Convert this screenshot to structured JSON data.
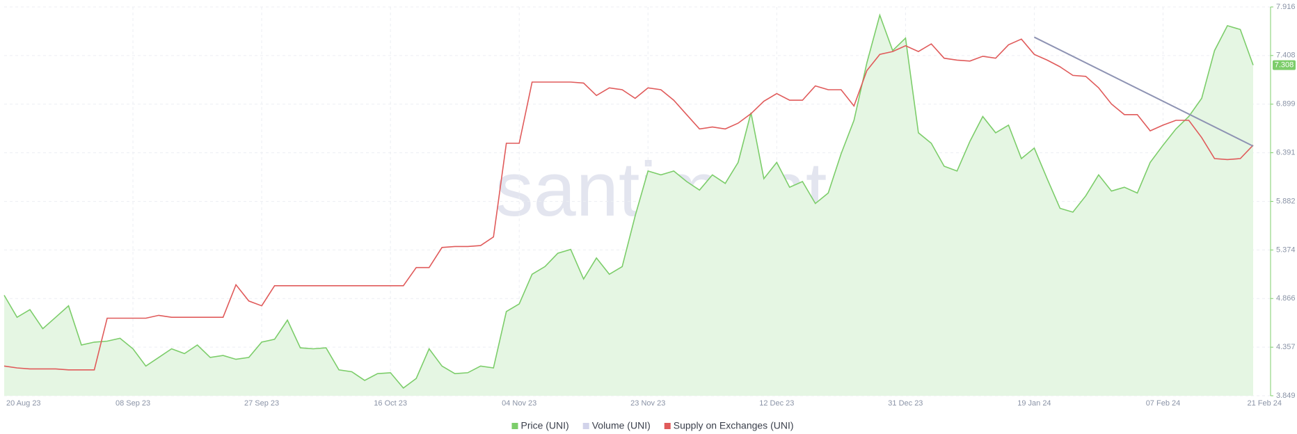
{
  "chart_data": {
    "type": "line",
    "watermark": "santiment",
    "categories": [
      "20 Aug 23",
      null,
      null,
      null,
      null,
      null,
      null,
      null,
      null,
      null,
      "08 Sep 23",
      null,
      null,
      null,
      null,
      null,
      null,
      null,
      null,
      null,
      "27 Sep 23",
      null,
      null,
      null,
      null,
      null,
      null,
      null,
      null,
      null,
      "16 Oct 23",
      null,
      null,
      null,
      null,
      null,
      null,
      null,
      null,
      null,
      "04 Nov 23",
      null,
      null,
      null,
      null,
      null,
      null,
      null,
      null,
      null,
      "23 Nov 23",
      null,
      null,
      null,
      null,
      null,
      null,
      null,
      null,
      null,
      "12 Dec 23",
      null,
      null,
      null,
      null,
      null,
      null,
      null,
      null,
      null,
      "31 Dec 23",
      null,
      null,
      null,
      null,
      null,
      null,
      null,
      null,
      null,
      "19 Jan 24",
      null,
      null,
      null,
      null,
      null,
      null,
      null,
      null,
      null,
      "07 Feb 24",
      null,
      null,
      null,
      null,
      null,
      null,
      "21 Feb 24"
    ],
    "series": [
      {
        "name": "Price (UNI)",
        "color": "#7ccd6a",
        "area": "#e5f6e3",
        "values": [
          4.9,
          4.67,
          4.75,
          4.55,
          4.67,
          4.79,
          4.38,
          4.41,
          4.42,
          4.45,
          4.34,
          4.16,
          4.25,
          4.34,
          4.29,
          4.38,
          4.25,
          4.27,
          4.23,
          4.25,
          4.41,
          4.44,
          4.64,
          4.35,
          4.34,
          4.35,
          4.12,
          4.1,
          4.01,
          4.08,
          4.09,
          3.93,
          4.03,
          4.34,
          4.16,
          4.08,
          4.09,
          4.16,
          4.14,
          4.73,
          4.81,
          5.12,
          5.2,
          5.34,
          5.38,
          5.07,
          5.29,
          5.12,
          5.2,
          5.73,
          6.2,
          6.16,
          6.2,
          6.09,
          6.0,
          6.16,
          6.07,
          6.29,
          6.81,
          6.12,
          6.29,
          6.03,
          6.09,
          5.86,
          5.97,
          6.38,
          6.73,
          7.33,
          7.83,
          7.46,
          7.59,
          6.6,
          6.49,
          6.25,
          6.2,
          6.51,
          6.77,
          6.6,
          6.68,
          6.33,
          6.44,
          6.12,
          5.81,
          5.77,
          5.94,
          6.16,
          5.99,
          6.03,
          5.97,
          6.29,
          6.47,
          6.64,
          6.77,
          6.96,
          7.46,
          7.72,
          7.68,
          7.308
        ],
        "last_value_label": "7.308"
      },
      {
        "name": "Volume (UNI)",
        "color": "#d2d3ea"
      },
      {
        "name": "Supply on Exchanges (UNI)",
        "color": "#e05a5a",
        "values": [
          4.16,
          4.14,
          4.13,
          4.13,
          4.13,
          4.12,
          4.12,
          4.12,
          4.66,
          4.66,
          4.66,
          4.66,
          4.69,
          4.67,
          4.67,
          4.67,
          4.67,
          4.67,
          5.01,
          4.84,
          4.79,
          5.0,
          5.0,
          5.0,
          5.0,
          5.0,
          5.0,
          5.0,
          5.0,
          5.0,
          5.0,
          5.0,
          5.19,
          5.19,
          5.4,
          5.41,
          5.41,
          5.42,
          5.51,
          6.49,
          6.49,
          7.13,
          7.13,
          7.13,
          7.13,
          7.12,
          6.99,
          7.07,
          7.05,
          6.96,
          7.07,
          7.05,
          6.94,
          6.79,
          6.64,
          6.66,
          6.64,
          6.7,
          6.8,
          6.93,
          7.01,
          6.94,
          6.94,
          7.09,
          7.05,
          7.05,
          6.88,
          7.25,
          7.42,
          7.45,
          7.51,
          7.45,
          7.53,
          7.38,
          7.36,
          7.35,
          7.4,
          7.38,
          7.52,
          7.58,
          7.42,
          7.36,
          7.29,
          7.2,
          7.19,
          7.07,
          6.9,
          6.79,
          6.79,
          6.62,
          6.68,
          6.73,
          6.73,
          6.55,
          6.33,
          6.32,
          6.33,
          6.47
        ]
      }
    ],
    "trendline": {
      "color": "#8e93b3",
      "categories": [
        "19 Jan 24",
        "21 Feb 24"
      ],
      "values": [
        7.6,
        6.46
      ]
    },
    "ylim": [
      3.849,
      7.916
    ],
    "yticks": [
      3.849,
      4.357,
      4.866,
      5.374,
      5.882,
      6.391,
      6.899,
      7.408,
      7.916
    ],
    "grid": true
  }
}
